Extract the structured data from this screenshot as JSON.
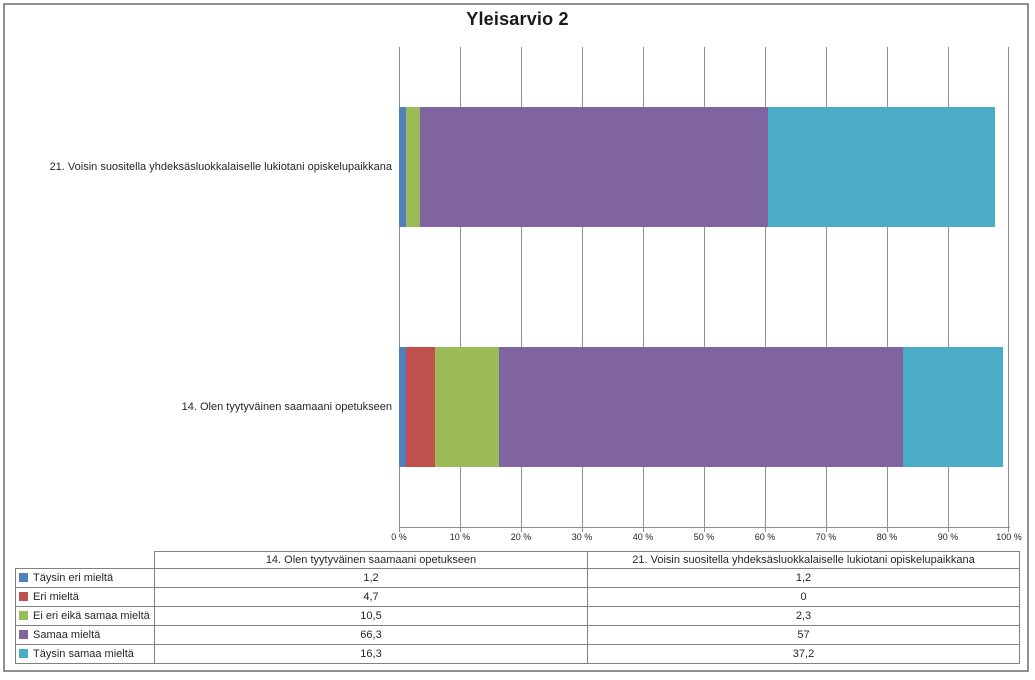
{
  "chart_data": {
    "type": "bar",
    "orientation": "horizontal",
    "stacked": true,
    "title": "Yleisarvio 2",
    "categories": [
      "21. Voisin suositella yhdeksäsluokkalaiselle lukiotani opiskelupaikkana",
      "14. Olen tyytyväinen saamaani opetukseen"
    ],
    "series": [
      {
        "name": "Täysin eri mieltä",
        "color": "#4F81BD",
        "values": [
          1.2,
          1.2
        ]
      },
      {
        "name": "Eri mieltä",
        "color": "#C0504D",
        "values": [
          0,
          4.7
        ]
      },
      {
        "name": "Ei eri eikä samaa mieltä",
        "color": "#9BBB59",
        "values": [
          2.3,
          10.5
        ]
      },
      {
        "name": "Samaa mieltä",
        "color": "#8064A2",
        "values": [
          57,
          66.3
        ]
      },
      {
        "name": "Täysin samaa mieltä",
        "color": "#4BACC6",
        "values": [
          37.2,
          16.3
        ]
      }
    ],
    "xlabel": "",
    "ylabel": "",
    "xlim": [
      0,
      100
    ],
    "x_ticks": [
      "0 %",
      "10 %",
      "20 %",
      "30 %",
      "40 %",
      "50 %",
      "60 %",
      "70 %",
      "80 %",
      "90 %",
      "100 %"
    ],
    "gridlines": "vertical",
    "legend_position": "table-below"
  },
  "table": {
    "corner_label": "",
    "columns": [
      "14. Olen tyytyväinen saamaani opetukseen",
      "21. Voisin suositella yhdeksäsluokkalaiselle lukiotani opiskelupaikkana"
    ],
    "rows": [
      {
        "label": "Täysin eri mieltä",
        "color": "#4F81BD",
        "values": [
          "1,2",
          "1,2"
        ]
      },
      {
        "label": "Eri mieltä",
        "color": "#C0504D",
        "values": [
          "4,7",
          "0"
        ]
      },
      {
        "label": "Ei eri eikä samaa mieltä",
        "color": "#9BBB59",
        "values": [
          "10,5",
          "2,3"
        ]
      },
      {
        "label": "Samaa mieltä",
        "color": "#8064A2",
        "values": [
          "66,3",
          "57"
        ]
      },
      {
        "label": "Täysin samaa mieltä",
        "color": "#4BACC6",
        "values": [
          "16,3",
          "37,2"
        ]
      }
    ]
  },
  "colors": {
    "grid": "#8f8f8f",
    "border": "#8f8f8f",
    "table_border": "#808080",
    "text": "#262626"
  }
}
